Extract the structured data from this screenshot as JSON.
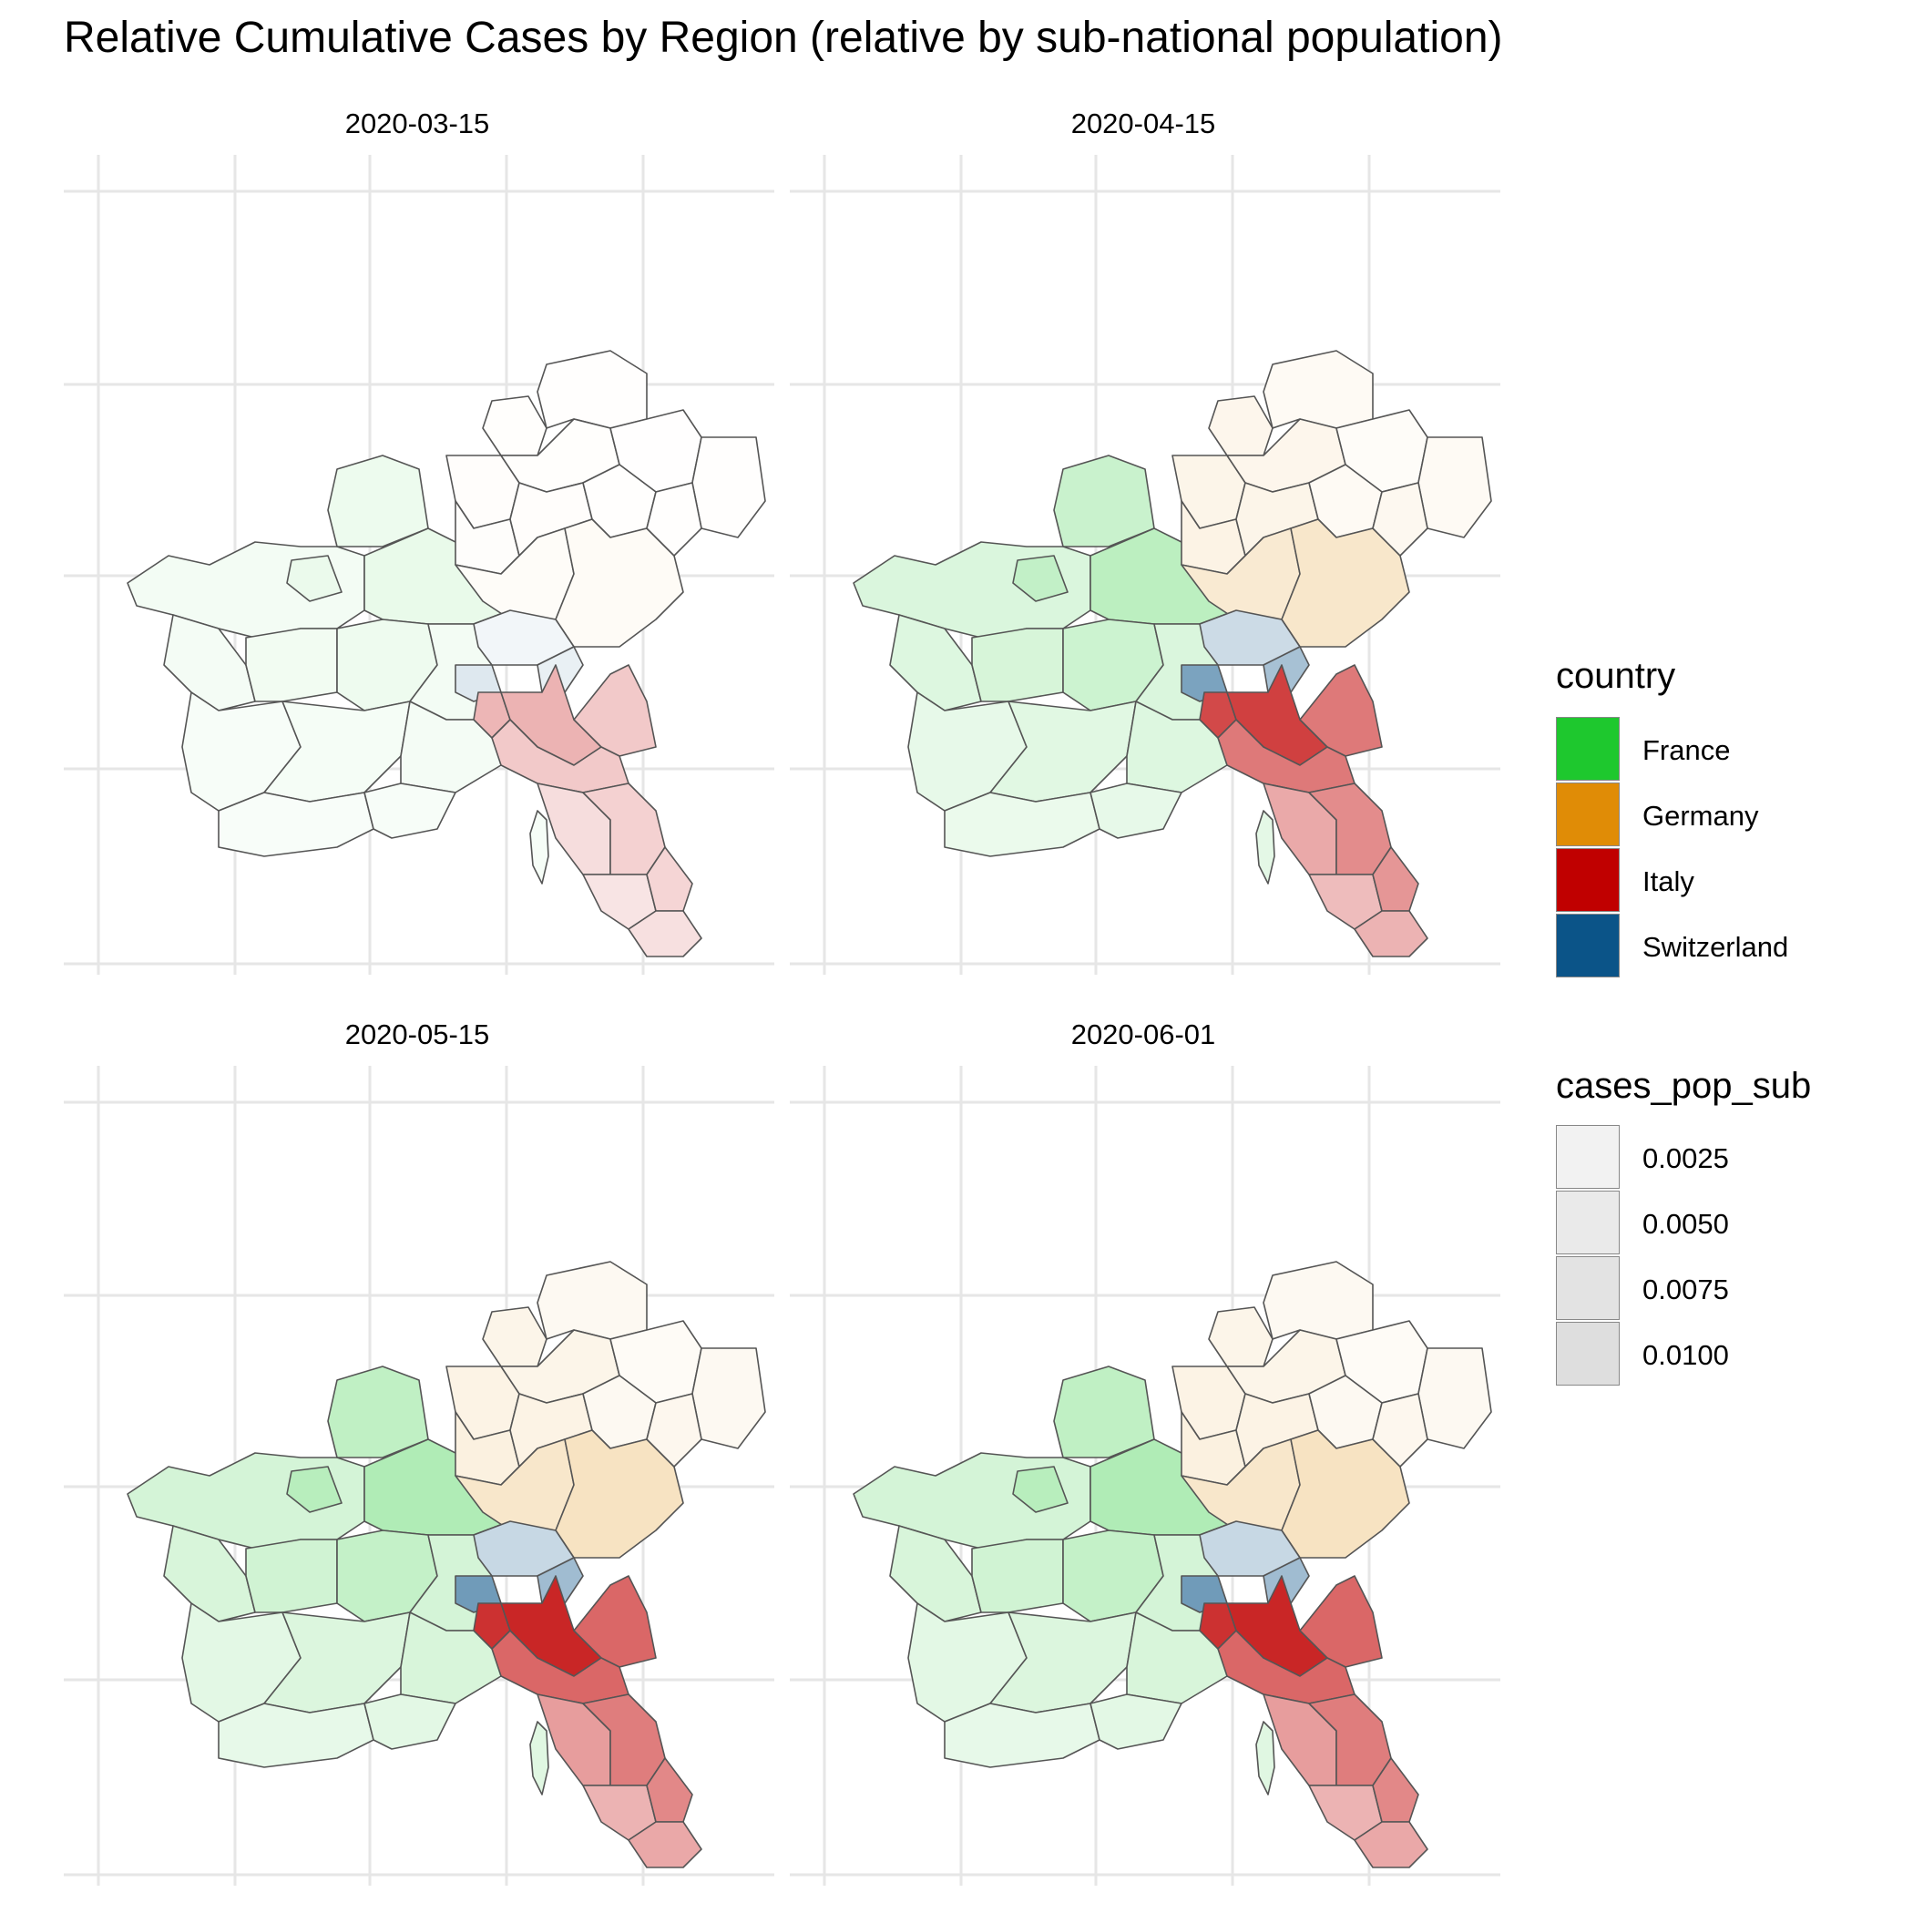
{
  "title": "Relative Cumulative Cases by Region (relative by sub-national population)",
  "facets": [
    {
      "label": "2020-03-15",
      "levels": {
        "France": 0.1,
        "Germany": 0.05,
        "Switzerland": 0.15,
        "Italy": 0.3
      }
    },
    {
      "label": "2020-04-15",
      "levels": {
        "France": 0.3,
        "Germany": 0.3,
        "Switzerland": 0.6,
        "Italy": 0.75
      }
    },
    {
      "label": "2020-05-15",
      "levels": {
        "France": 0.35,
        "Germany": 0.35,
        "Switzerland": 0.65,
        "Italy": 0.85
      }
    },
    {
      "label": "2020-06-01",
      "levels": {
        "France": 0.35,
        "Germany": 0.35,
        "Switzerland": 0.65,
        "Italy": 0.85
      }
    }
  ],
  "legend_country": {
    "title": "country",
    "items": [
      {
        "label": "France",
        "color": "#1ec82e"
      },
      {
        "label": "Germany",
        "color": "#e08c06"
      },
      {
        "label": "Italy",
        "color": "#c00000"
      },
      {
        "label": "Switzerland",
        "color": "#0b5488"
      }
    ]
  },
  "legend_cases": {
    "title": "cases_pop_sub",
    "items": [
      {
        "label": "0.0025",
        "color": "#f2f2f2"
      },
      {
        "label": "0.0050",
        "color": "#eaeaea"
      },
      {
        "label": "0.0075",
        "color": "#e3e3e3"
      },
      {
        "label": "0.0100",
        "color": "#dedede"
      }
    ]
  },
  "grid": true,
  "legend_position": "right"
}
